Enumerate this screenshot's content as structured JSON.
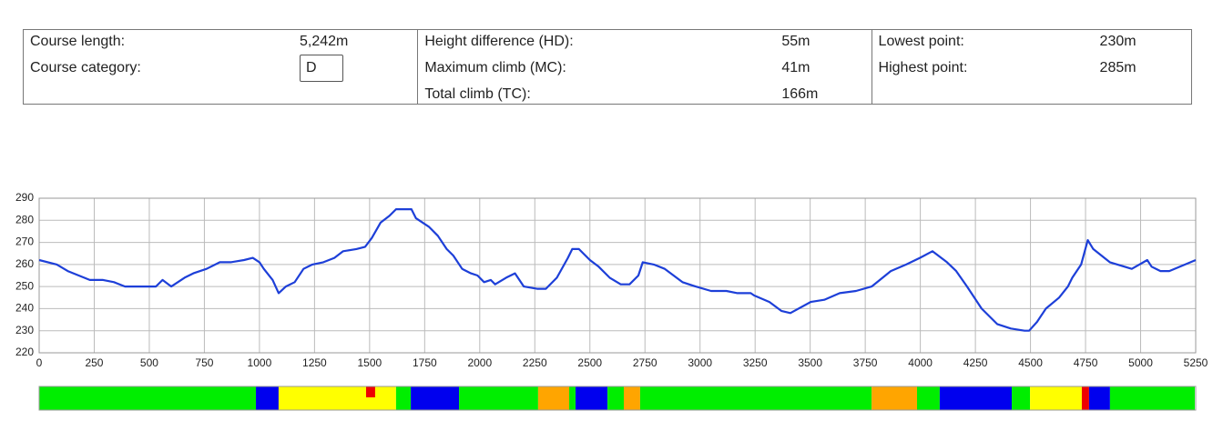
{
  "info": {
    "columns": [
      [
        {
          "label": "Course length:",
          "value": "5,242m"
        },
        {
          "label": "Course category:",
          "input": "D"
        }
      ],
      [
        {
          "label": "Height difference (HD):",
          "value": "55m"
        },
        {
          "label": "Maximum climb (MC):",
          "value": "41m"
        },
        {
          "label": "Total climb (TC):",
          "value": "166m"
        }
      ],
      [
        {
          "label": "Lowest point:",
          "value": "230m"
        },
        {
          "label": "Highest point:",
          "value": "285m"
        }
      ]
    ]
  },
  "chart_data": {
    "type": "line",
    "color": "#1d3fd8",
    "grid": true,
    "x": [
      0,
      80,
      130,
      180,
      230,
      290,
      340,
      390,
      450,
      530,
      560,
      600,
      660,
      700,
      760,
      820,
      870,
      930,
      970,
      1000,
      1020,
      1060,
      1087,
      1120,
      1160,
      1200,
      1240,
      1290,
      1340,
      1380,
      1440,
      1480,
      1510,
      1550,
      1590,
      1620,
      1660,
      1690,
      1710,
      1770,
      1810,
      1850,
      1880,
      1920,
      1960,
      1990,
      2020,
      2050,
      2070,
      2120,
      2160,
      2200,
      2260,
      2300,
      2350,
      2400,
      2420,
      2450,
      2500,
      2540,
      2590,
      2640,
      2680,
      2720,
      2740,
      2790,
      2840,
      2880,
      2920,
      2980,
      3050,
      3120,
      3170,
      3230,
      3245,
      3315,
      3369,
      3410,
      3502,
      3564,
      3634,
      3708,
      3779,
      3866,
      3936,
      3998,
      4055,
      4121,
      4163,
      4212,
      4278,
      4349,
      4411,
      4473,
      4494,
      4530,
      4570,
      4630,
      4670,
      4690,
      4730,
      4760,
      4785,
      4860,
      4960,
      5030,
      5050,
      5090,
      5130,
      5250
    ],
    "values": [
      262,
      260,
      257,
      255,
      253,
      253,
      252,
      250,
      250,
      250,
      253,
      250,
      254,
      256,
      258,
      261,
      261,
      262,
      263,
      261,
      258,
      253,
      247,
      250,
      252,
      258,
      260,
      261,
      263,
      266,
      267,
      268,
      272,
      279,
      282,
      285,
      285,
      285,
      281,
      277,
      273,
      267,
      264,
      258,
      256,
      255,
      252,
      253,
      251,
      254,
      256,
      250,
      249,
      249,
      254,
      263,
      267,
      267,
      262,
      259,
      254,
      251,
      251,
      255,
      261,
      260,
      258,
      255,
      252,
      250,
      248,
      248,
      247,
      247,
      246,
      243,
      239,
      238,
      243,
      244,
      247,
      248,
      250,
      257,
      260,
      263,
      266,
      261,
      257,
      250,
      240,
      233,
      231,
      230,
      230,
      234,
      240,
      245,
      250,
      254,
      260,
      271,
      267,
      261,
      258,
      262,
      259,
      257,
      257,
      262
    ],
    "xlim": [
      0,
      5250
    ],
    "xticks": [
      0,
      250,
      500,
      750,
      1000,
      1250,
      1500,
      1750,
      2000,
      2250,
      2500,
      2750,
      3000,
      3250,
      3500,
      3750,
      4000,
      4250,
      4500,
      4750,
      5000,
      5250
    ],
    "ylim": [
      220,
      290
    ],
    "yticks": [
      220,
      230,
      240,
      250,
      260,
      270,
      280,
      290
    ],
    "segments": [
      {
        "start": 0,
        "end": 984,
        "color": "#00ee00"
      },
      {
        "start": 984,
        "end": 1087,
        "color": "#0000ee"
      },
      {
        "start": 1087,
        "end": 1620,
        "color": "#ffff00"
      },
      {
        "start": 1620,
        "end": 1687,
        "color": "#00ee00"
      },
      {
        "start": 1687,
        "end": 1906,
        "color": "#0000ee"
      },
      {
        "start": 1906,
        "end": 2265,
        "color": "#00ee00"
      },
      {
        "start": 2265,
        "end": 2406,
        "color": "#ffa500"
      },
      {
        "start": 2406,
        "end": 2435,
        "color": "#00ee00"
      },
      {
        "start": 2435,
        "end": 2580,
        "color": "#0000ee"
      },
      {
        "start": 2580,
        "end": 2654,
        "color": "#00ee00"
      },
      {
        "start": 2654,
        "end": 2728,
        "color": "#ffa500"
      },
      {
        "start": 2728,
        "end": 3779,
        "color": "#00ee00"
      },
      {
        "start": 3779,
        "end": 3985,
        "color": "#ffa500"
      },
      {
        "start": 3985,
        "end": 4088,
        "color": "#00ee00"
      },
      {
        "start": 4088,
        "end": 4415,
        "color": "#0000ee"
      },
      {
        "start": 4415,
        "end": 4498,
        "color": "#00ee00"
      },
      {
        "start": 4498,
        "end": 4733,
        "color": "#ffff00"
      },
      {
        "start": 4733,
        "end": 4766,
        "color": "#ee0000"
      },
      {
        "start": 4766,
        "end": 4861,
        "color": "#0000ee"
      },
      {
        "start": 4861,
        "end": 5246,
        "color": "#00ee00"
      }
    ],
    "markers": [
      {
        "start": 1484,
        "end": 1525,
        "color": "#ee0000"
      }
    ]
  }
}
